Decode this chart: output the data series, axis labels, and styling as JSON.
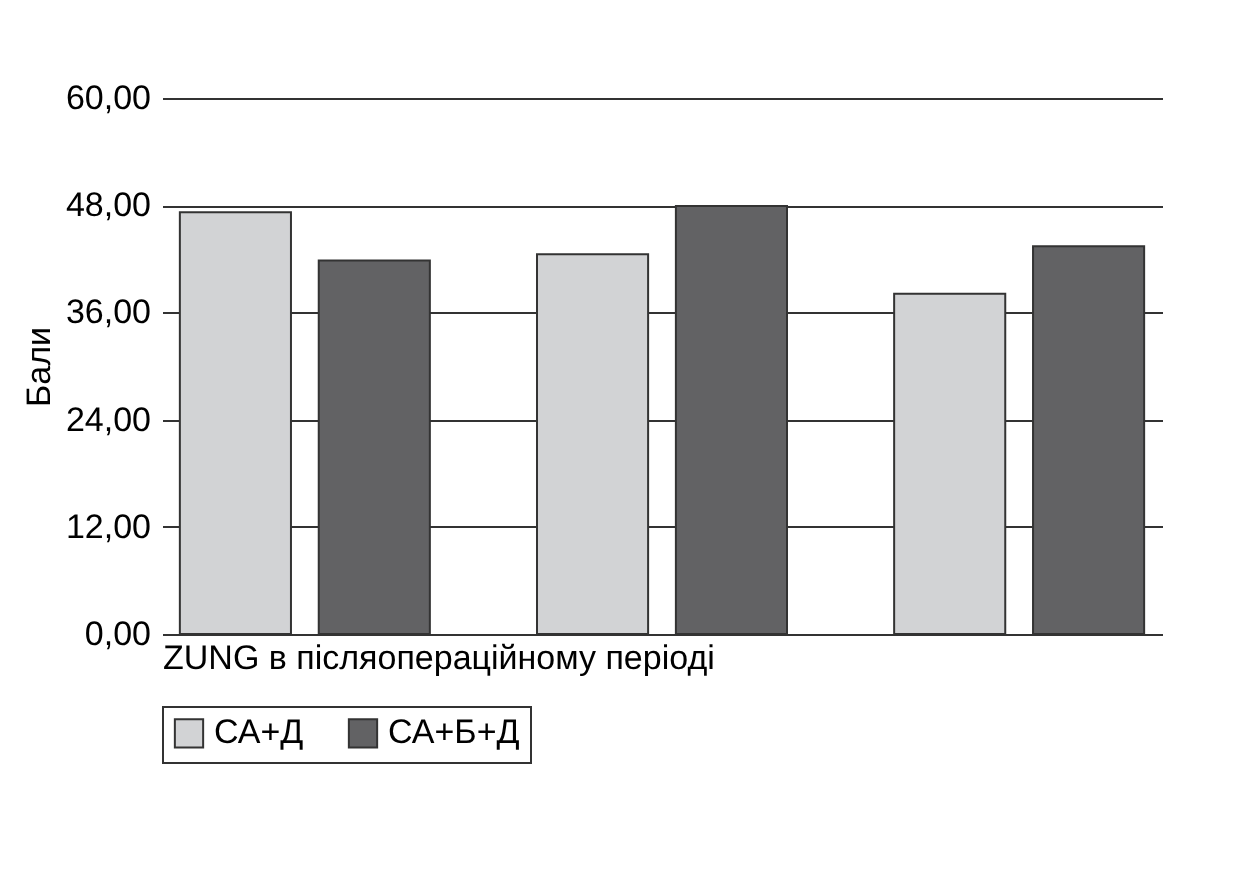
{
  "chart_data": {
    "type": "bar",
    "xlabel": "ZUNG в післяопераційному періоді",
    "ylabel": "Бали",
    "categories": [
      null,
      null,
      null
    ],
    "series": [
      {
        "name": "СА+Д",
        "color": "#d2d3d5",
        "values": [
          47.2,
          42.5,
          38.1
        ]
      },
      {
        "name": "СА+Б+Д",
        "color": "#626264",
        "values": [
          41.8,
          47.9,
          43.4
        ]
      }
    ],
    "ylim": [
      0,
      60
    ],
    "yticks": [
      {
        "value": 0,
        "label": "0,00"
      },
      {
        "value": 12,
        "label": "12,00"
      },
      {
        "value": 24,
        "label": "24,00"
      },
      {
        "value": 36,
        "label": "36,00"
      },
      {
        "value": 48,
        "label": "48,00"
      },
      {
        "value": 60,
        "label": "60,00"
      }
    ],
    "grid": "y",
    "legend": "bottom"
  }
}
